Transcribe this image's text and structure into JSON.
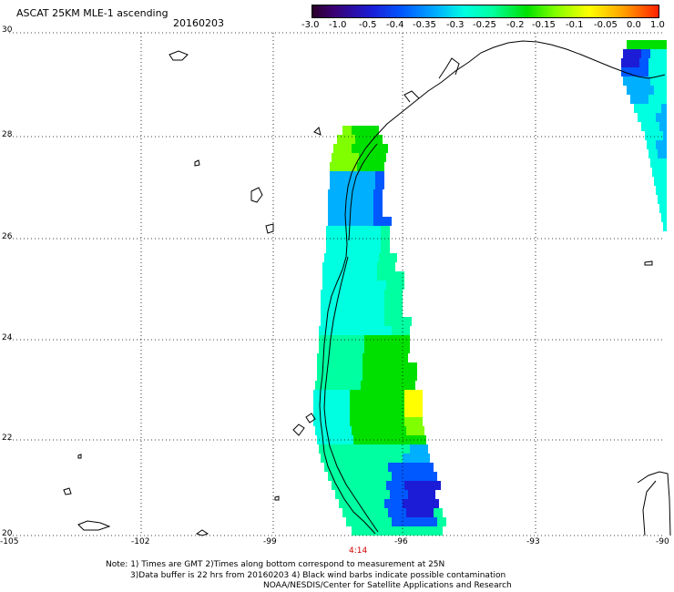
{
  "header": {
    "title": "ASCAT 25KM MLE-1 ascending",
    "date": "20160203"
  },
  "colorbar": {
    "labels": [
      "-3.0",
      "-1.0",
      "-0.5",
      "-0.4",
      "-0.35",
      "-0.3",
      "-0.25",
      "-0.2",
      "-0.15",
      "-0.1",
      "-0.05",
      "0.0",
      "1.0"
    ]
  },
  "axes": {
    "y_ticks": [
      "30",
      "28",
      "26",
      "24",
      "22",
      "20"
    ],
    "x_ticks": [
      "-105",
      "-102",
      "-99",
      "-96",
      "-93",
      "-90"
    ]
  },
  "pass_time": "4:14",
  "notes": [
    "Note: 1) Times are GMT 2)Times along bottom correspond to measurement at 25N",
    "3)Data buffer is 22 hrs from 20160203 4) Black wind barbs indicate possible contamination",
    "NOAA/NESDIS/Center for Satellite Applications and Research"
  ],
  "colors": {
    "dark_blue": "#1c1cd6",
    "blue": "#0058ff",
    "light_blue": "#00b0ff",
    "cyan": "#00ffe0",
    "aqua": "#00ffa0",
    "green": "#00e000",
    "lime": "#7fff00",
    "yellow": "#ffff00"
  }
}
